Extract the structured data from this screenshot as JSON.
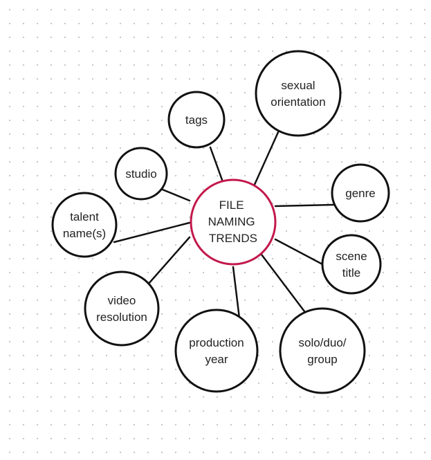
{
  "diagram": {
    "center": {
      "lines": [
        "FILE",
        "NAMING",
        "TRENDS"
      ],
      "stroke_color": "#c2184b"
    },
    "nodes": [
      {
        "id": "sexual-orientation",
        "lines": [
          "sexual",
          "orientation"
        ]
      },
      {
        "id": "tags",
        "lines": [
          "tags"
        ]
      },
      {
        "id": "studio",
        "lines": [
          "studio"
        ]
      },
      {
        "id": "genre",
        "lines": [
          "genre"
        ]
      },
      {
        "id": "talent-names",
        "lines": [
          "talent",
          "name(s)"
        ]
      },
      {
        "id": "scene-title",
        "lines": [
          "scene",
          "title"
        ]
      },
      {
        "id": "video-resolution",
        "lines": [
          "video",
          "resolution"
        ]
      },
      {
        "id": "production-year",
        "lines": [
          "production",
          "year"
        ]
      },
      {
        "id": "solo-duo-group",
        "lines": [
          "solo/duo/",
          "group"
        ]
      }
    ]
  }
}
